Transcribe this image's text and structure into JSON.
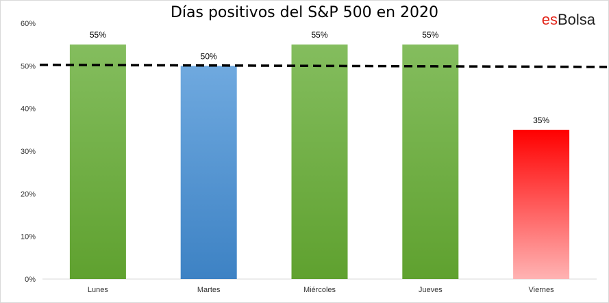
{
  "chart_data": {
    "type": "bar",
    "title": "Días positivos del S&P 500 en 2020",
    "categories": [
      "Lunes",
      "Martes",
      "Miércoles",
      "Jueves",
      "Viernes"
    ],
    "values": [
      55,
      50,
      55,
      55,
      35
    ],
    "data_labels": [
      "55%",
      "50%",
      "55%",
      "55%",
      "35%"
    ],
    "bar_colors": [
      "#70ad47",
      "#5b9bd5",
      "#70ad47",
      "#70ad47",
      "#ff0000"
    ],
    "ylim": [
      0,
      60
    ],
    "yticks": [
      0,
      10,
      20,
      30,
      40,
      50,
      60
    ],
    "ytick_labels": [
      "0%",
      "10%",
      "20%",
      "30%",
      "40%",
      "50%",
      "60%"
    ],
    "reference_line": {
      "value": 50,
      "style": "dashed",
      "color": "#000000"
    },
    "grid": false,
    "xlabel": "",
    "ylabel": ""
  },
  "brand": {
    "part1": "es",
    "part2": "Bolsa"
  }
}
